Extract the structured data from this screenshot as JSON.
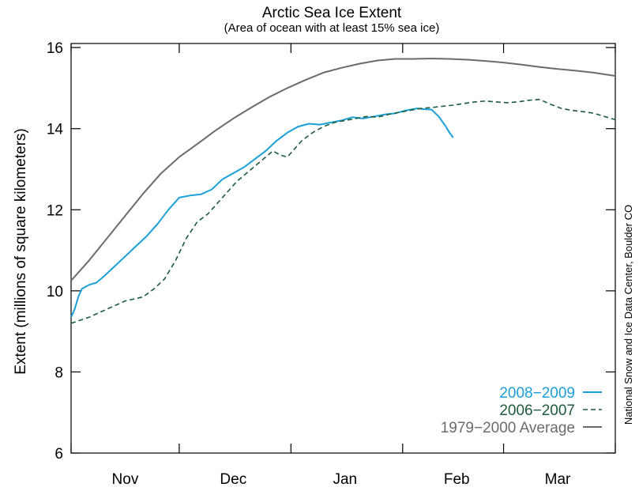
{
  "chart_data": {
    "type": "line",
    "title": "Arctic Sea Ice Extent",
    "subtitle": "(Area of ocean with at least 15% sea ice)",
    "ylabel": "Extent (millions of square kilometers)",
    "xlabel": "",
    "credit": "National Snow and Ice Data Center, Boulder CO",
    "xlim": [
      0,
      151
    ],
    "ylim": [
      6,
      16.1
    ],
    "yticks": [
      6,
      8,
      10,
      12,
      14,
      16
    ],
    "xticks": [
      {
        "label": "Nov",
        "x": 15
      },
      {
        "label": "Dec",
        "x": 45
      },
      {
        "label": "Jan",
        "x": 76
      },
      {
        "label": "Feb",
        "x": 107
      },
      {
        "label": "Mar",
        "x": 135
      }
    ],
    "xtick_marks": [
      0,
      30,
      61,
      92,
      120,
      151
    ],
    "grid": false,
    "legend_position": "bottom-right",
    "series": [
      {
        "name": "2008−2009",
        "color": "#1aa0d8",
        "dash": "solid",
        "x": [
          0,
          1,
          2,
          3,
          5,
          7,
          9,
          12,
          15,
          18,
          21,
          24,
          27,
          30,
          33,
          36,
          39,
          42,
          45,
          48,
          51,
          54,
          57,
          60,
          63,
          66,
          69,
          72,
          75,
          78,
          81,
          84,
          87,
          90,
          93,
          96,
          98,
          100,
          102,
          104,
          105,
          106
        ],
        "values": [
          9.35,
          9.55,
          9.85,
          10.05,
          10.15,
          10.2,
          10.35,
          10.6,
          10.85,
          11.1,
          11.35,
          11.65,
          12.0,
          12.3,
          12.35,
          12.38,
          12.5,
          12.75,
          12.9,
          13.05,
          13.25,
          13.45,
          13.7,
          13.9,
          14.05,
          14.12,
          14.1,
          14.15,
          14.2,
          14.28,
          14.25,
          14.3,
          14.35,
          14.38,
          14.45,
          14.5,
          14.48,
          14.47,
          14.3,
          14.05,
          13.9,
          13.78
        ]
      },
      {
        "name": "2006−2007",
        "color": "#1c5b3a",
        "dash": "dashed",
        "x": [
          0,
          5,
          10,
          15,
          20,
          23,
          26,
          29,
          32,
          35,
          38,
          42,
          46,
          50,
          54,
          56,
          58,
          60,
          62,
          64,
          67,
          70,
          73,
          76,
          79,
          82,
          85,
          88,
          91,
          94,
          97,
          100,
          103,
          106,
          109,
          112,
          115,
          118,
          121,
          124,
          127,
          130,
          133,
          136,
          139,
          142,
          145,
          148,
          151
        ],
        "values": [
          9.2,
          9.35,
          9.55,
          9.75,
          9.85,
          10.05,
          10.3,
          10.75,
          11.3,
          11.7,
          11.9,
          12.3,
          12.7,
          13.0,
          13.3,
          13.45,
          13.35,
          13.3,
          13.5,
          13.7,
          13.9,
          14.05,
          14.15,
          14.2,
          14.25,
          14.3,
          14.28,
          14.35,
          14.4,
          14.45,
          14.5,
          14.52,
          14.55,
          14.58,
          14.62,
          14.66,
          14.68,
          14.66,
          14.64,
          14.66,
          14.7,
          14.72,
          14.6,
          14.5,
          14.45,
          14.42,
          14.38,
          14.3,
          14.22
        ]
      },
      {
        "name": "1979−2000 Average",
        "color": "#6b6b6b",
        "dash": "solid",
        "x": [
          0,
          5,
          10,
          15,
          20,
          25,
          30,
          35,
          40,
          45,
          50,
          55,
          60,
          65,
          70,
          75,
          80,
          85,
          90,
          95,
          100,
          105,
          110,
          115,
          120,
          125,
          130,
          135,
          140,
          145,
          151
        ],
        "values": [
          10.25,
          10.75,
          11.3,
          11.85,
          12.4,
          12.9,
          13.3,
          13.62,
          13.95,
          14.25,
          14.52,
          14.78,
          15.0,
          15.2,
          15.38,
          15.5,
          15.6,
          15.68,
          15.72,
          15.72,
          15.73,
          15.72,
          15.7,
          15.67,
          15.63,
          15.58,
          15.52,
          15.47,
          15.43,
          15.38,
          15.3
        ]
      }
    ]
  }
}
